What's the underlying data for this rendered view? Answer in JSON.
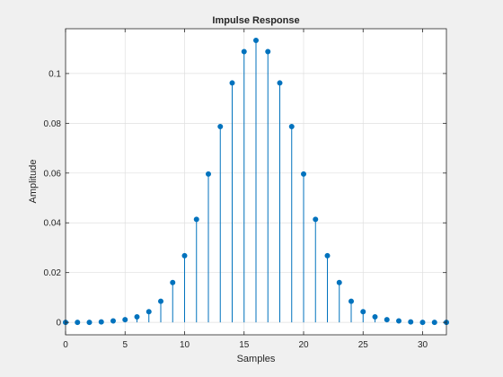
{
  "chart_data": {
    "type": "stem",
    "title": "Impulse Response",
    "xlabel": "Samples",
    "ylabel": "Amplitude",
    "xlim": [
      0,
      32
    ],
    "ylim": [
      -0.005,
      0.118
    ],
    "xticks": [
      0,
      5,
      10,
      15,
      20,
      25,
      30
    ],
    "yticks": [
      0,
      0.02,
      0.04,
      0.06,
      0.08,
      0.1
    ],
    "ytick_labels": [
      "0",
      "0.02",
      "0.04",
      "0.06",
      "0.08",
      "0.1"
    ],
    "grid": true,
    "series": [
      {
        "x": [
          0,
          1,
          2,
          3,
          4,
          5,
          6,
          7,
          8,
          9,
          10,
          11,
          12,
          13,
          14,
          15,
          16,
          17,
          18,
          19,
          20,
          21,
          22,
          23,
          24,
          25,
          26,
          27,
          28,
          29,
          30,
          31,
          32
        ],
        "values": [
          0,
          0,
          0,
          0.0002,
          0.0006,
          0.0011,
          0.0022,
          0.0043,
          0.0085,
          0.016,
          0.0268,
          0.0414,
          0.0596,
          0.0787,
          0.0962,
          0.1088,
          0.1133,
          0.1088,
          0.0962,
          0.0787,
          0.0596,
          0.0414,
          0.0268,
          0.016,
          0.0085,
          0.0043,
          0.0022,
          0.0011,
          0.0006,
          0.0002,
          0,
          0,
          0
        ]
      }
    ],
    "colors": {
      "stem": "#0072bd",
      "grid": "#dfdfdf",
      "axes": "#262626",
      "plot_bg": "#ffffff",
      "figure_bg": "#f0f0f0"
    }
  }
}
